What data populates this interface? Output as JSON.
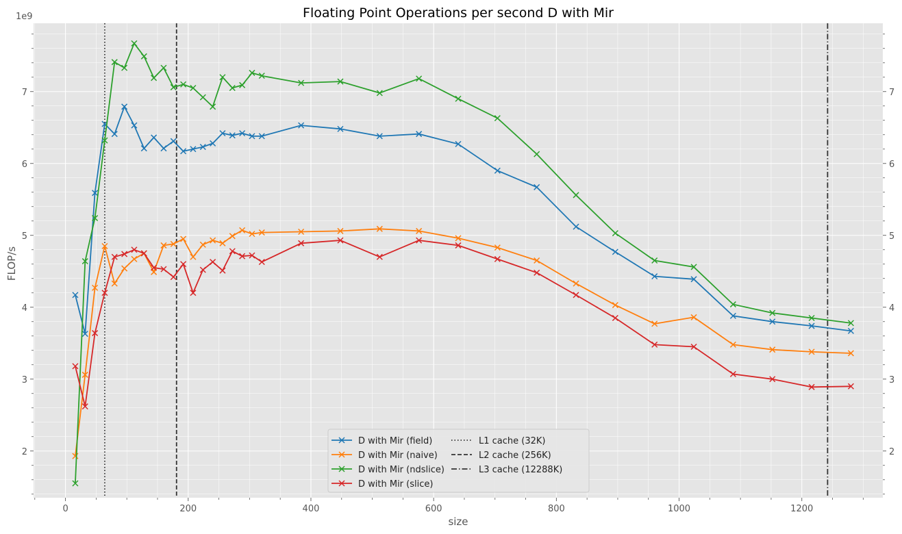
{
  "chart_data": {
    "type": "line",
    "title": "Floating Point Operations per second D with Mir",
    "xlabel": "size",
    "ylabel": "FLOP/s",
    "y_offset_label": "1e9",
    "xlim": [
      -52,
      1332
    ],
    "ylim": [
      1.35,
      7.95
    ],
    "xticks": [
      0,
      200,
      400,
      600,
      800,
      1000,
      1200
    ],
    "xtick_labels": [
      "0",
      "200",
      "400",
      "600",
      "800",
      "1000",
      "1200"
    ],
    "yticks": [
      2,
      3,
      4,
      5,
      6,
      7
    ],
    "ytick_labels": [
      "2",
      "3",
      "4",
      "5",
      "6",
      "7"
    ],
    "grid": true,
    "legend_position": "lower center",
    "series": [
      {
        "name": "D with Mir (field)",
        "color": "#1f77b4",
        "marker": "x",
        "x": [
          16,
          32,
          48,
          64,
          80,
          96,
          112,
          128,
          144,
          160,
          176,
          192,
          208,
          224,
          240,
          256,
          272,
          288,
          304,
          320,
          384,
          448,
          512,
          576,
          640,
          704,
          768,
          832,
          896,
          960,
          1024,
          1088,
          1152,
          1216,
          1280
        ],
        "y": [
          4.17,
          3.63,
          5.59,
          6.55,
          6.41,
          6.79,
          6.53,
          6.21,
          6.36,
          6.21,
          6.31,
          6.17,
          6.2,
          6.23,
          6.28,
          6.42,
          6.39,
          6.42,
          6.38,
          6.38,
          6.53,
          6.48,
          6.38,
          6.41,
          6.27,
          5.9,
          5.67,
          5.12,
          4.77,
          4.43,
          4.39,
          3.88,
          3.8,
          3.74,
          3.67
        ]
      },
      {
        "name": "D with Mir (naive)",
        "color": "#ff7f0e",
        "marker": "x",
        "x": [
          16,
          32,
          48,
          64,
          80,
          96,
          112,
          128,
          144,
          160,
          176,
          192,
          208,
          224,
          240,
          256,
          272,
          288,
          304,
          320,
          384,
          448,
          512,
          576,
          640,
          704,
          768,
          832,
          896,
          960,
          1024,
          1088,
          1152,
          1216,
          1280
        ],
        "y": [
          1.93,
          3.06,
          4.27,
          4.85,
          4.33,
          4.54,
          4.67,
          4.75,
          4.49,
          4.86,
          4.88,
          4.95,
          4.7,
          4.87,
          4.93,
          4.89,
          4.99,
          5.07,
          5.02,
          5.04,
          5.05,
          5.06,
          5.09,
          5.06,
          4.96,
          4.83,
          4.65,
          4.33,
          4.03,
          3.77,
          3.86,
          3.48,
          3.41,
          3.38,
          3.36
        ]
      },
      {
        "name": "D with Mir (ndslice)",
        "color": "#2ca02c",
        "marker": "x",
        "x": [
          16,
          32,
          48,
          64,
          80,
          96,
          112,
          128,
          144,
          160,
          176,
          192,
          208,
          224,
          240,
          256,
          272,
          288,
          304,
          320,
          384,
          448,
          512,
          576,
          640,
          704,
          768,
          832,
          896,
          960,
          1024,
          1088,
          1152,
          1216,
          1280
        ],
        "y": [
          1.55,
          4.64,
          5.24,
          6.32,
          7.41,
          7.33,
          7.67,
          7.49,
          7.19,
          7.33,
          7.06,
          7.1,
          7.05,
          6.92,
          6.79,
          7.2,
          7.05,
          7.09,
          7.26,
          7.22,
          7.12,
          7.14,
          6.98,
          7.18,
          6.9,
          6.63,
          6.13,
          5.56,
          5.03,
          4.65,
          4.56,
          4.04,
          3.92,
          3.85,
          3.78
        ]
      },
      {
        "name": "D with Mir (slice)",
        "color": "#d62728",
        "marker": "x",
        "x": [
          16,
          32,
          48,
          64,
          80,
          96,
          112,
          128,
          144,
          160,
          176,
          192,
          208,
          224,
          240,
          256,
          272,
          288,
          304,
          320,
          384,
          448,
          512,
          576,
          640,
          704,
          768,
          832,
          896,
          960,
          1024,
          1088,
          1152,
          1216,
          1280
        ],
        "y": [
          3.18,
          2.62,
          3.64,
          4.2,
          4.7,
          4.74,
          4.8,
          4.75,
          4.55,
          4.53,
          4.42,
          4.6,
          4.2,
          4.52,
          4.63,
          4.51,
          4.78,
          4.71,
          4.72,
          4.63,
          4.89,
          4.93,
          4.7,
          4.93,
          4.86,
          4.67,
          4.48,
          4.17,
          3.85,
          3.48,
          3.45,
          3.07,
          3.0,
          2.89,
          2.9
        ]
      }
    ],
    "vlines": [
      {
        "name": "L1 cache (32K)",
        "x": 64,
        "style": "dotted",
        "color": "#333333"
      },
      {
        "name": "L2 cache (256K)",
        "x": 181,
        "style": "dashed",
        "color": "#333333"
      },
      {
        "name": "L3 cache (12288K)",
        "x": 1242,
        "style": "dashdot",
        "color": "#333333"
      }
    ]
  }
}
